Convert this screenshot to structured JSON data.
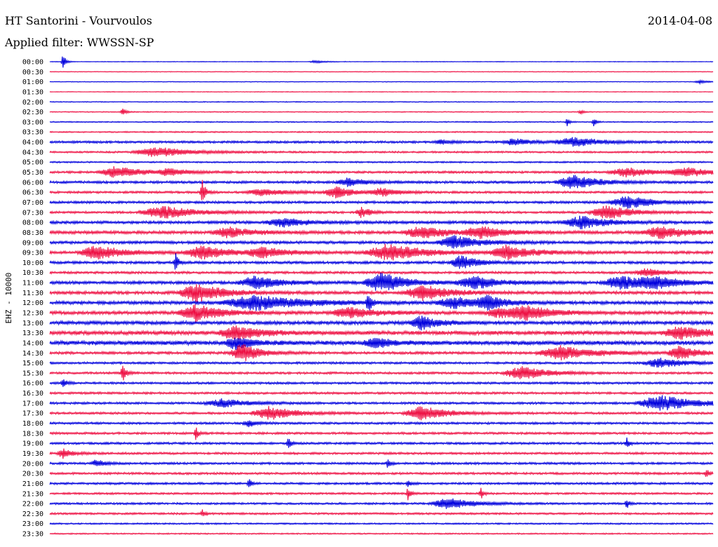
{
  "header": {
    "station": "HT Santorini - Vourvoulos",
    "date": "2014-04-08",
    "filter": "Applied filter: WWSSN-SP"
  },
  "colors": {
    "trace_even": "#0000dd",
    "trace_odd": "#ee1144",
    "background": "#ffffff",
    "text": "#000000"
  },
  "chart_data": {
    "type": "line",
    "title": "HT Santorini - Vourvoulos",
    "subtitle": "Applied filter: WWSSN-SP",
    "ylabel": "EHZ - 10000",
    "xlabel": "",
    "grid": false,
    "categories": [
      "00:00",
      "00:30",
      "01:00",
      "01:30",
      "02:00",
      "02:30",
      "03:00",
      "03:30",
      "04:00",
      "04:30",
      "05:00",
      "05:30",
      "06:00",
      "06:30",
      "07:00",
      "07:30",
      "08:00",
      "08:30",
      "09:00",
      "09:30",
      "10:00",
      "10:30",
      "11:00",
      "11:30",
      "12:00",
      "12:30",
      "13:00",
      "13:30",
      "14:00",
      "14:30",
      "15:00",
      "15:30",
      "16:00",
      "16:30",
      "17:00",
      "17:30",
      "18:00",
      "18:30",
      "19:00",
      "19:30",
      "20:00",
      "20:30",
      "21:00",
      "21:30",
      "22:00",
      "22:30",
      "23:00",
      "23:30"
    ],
    "trace_colors": [
      "#0000dd",
      "#ee1144"
    ],
    "noise_level": [
      0.3,
      0.3,
      0.3,
      0.3,
      0.4,
      0.4,
      0.5,
      0.6,
      1.0,
      0.8,
      0.7,
      1.0,
      1.1,
      1.0,
      1.1,
      1.0,
      1.3,
      1.4,
      1.3,
      1.3,
      1.2,
      1.1,
      1.4,
      1.4,
      1.5,
      1.5,
      1.6,
      1.8,
      1.9,
      1.2,
      1.0,
      1.0,
      1.0,
      1.0,
      1.0,
      1.0,
      1.0,
      1.0,
      1.0,
      1.0,
      1.0,
      1.0,
      1.0,
      0.9,
      0.9,
      0.9,
      0.7,
      0.6
    ],
    "events": [
      {
        "row": 0,
        "t": 0.02,
        "amp": 12,
        "dur": 0.003
      },
      {
        "row": 0,
        "t": 0.4,
        "amp": 2,
        "dur": 0.01
      },
      {
        "row": 2,
        "t": 0.98,
        "amp": 2,
        "dur": 0.01
      },
      {
        "row": 5,
        "t": 0.11,
        "amp": 6,
        "dur": 0.004
      },
      {
        "row": 5,
        "t": 0.8,
        "amp": 3,
        "dur": 0.004
      },
      {
        "row": 6,
        "t": 0.78,
        "amp": 6,
        "dur": 0.003
      },
      {
        "row": 6,
        "t": 0.82,
        "amp": 6,
        "dur": 0.003
      },
      {
        "row": 8,
        "t": 0.59,
        "amp": 4,
        "dur": 0.01
      },
      {
        "row": 8,
        "t": 0.7,
        "amp": 5,
        "dur": 0.02
      },
      {
        "row": 8,
        "t": 0.79,
        "amp": 7,
        "dur": 0.03
      },
      {
        "row": 9,
        "t": 0.16,
        "amp": 7,
        "dur": 0.04
      },
      {
        "row": 11,
        "t": 0.1,
        "amp": 8,
        "dur": 0.03
      },
      {
        "row": 11,
        "t": 0.18,
        "amp": 5,
        "dur": 0.02
      },
      {
        "row": 11,
        "t": 0.87,
        "amp": 7,
        "dur": 0.03
      },
      {
        "row": 11,
        "t": 0.96,
        "amp": 6,
        "dur": 0.03
      },
      {
        "row": 12,
        "t": 0.45,
        "amp": 6,
        "dur": 0.02
      },
      {
        "row": 12,
        "t": 0.79,
        "amp": 10,
        "dur": 0.03
      },
      {
        "row": 13,
        "t": 0.23,
        "amp": 18,
        "dur": 0.004
      },
      {
        "row": 13,
        "t": 0.32,
        "amp": 5,
        "dur": 0.03
      },
      {
        "row": 13,
        "t": 0.43,
        "amp": 8,
        "dur": 0.02
      },
      {
        "row": 13,
        "t": 0.5,
        "amp": 6,
        "dur": 0.02
      },
      {
        "row": 14,
        "t": 0.87,
        "amp": 9,
        "dur": 0.03
      },
      {
        "row": 15,
        "t": 0.17,
        "amp": 9,
        "dur": 0.04
      },
      {
        "row": 15,
        "t": 0.47,
        "amp": 8,
        "dur": 0.01
      },
      {
        "row": 15,
        "t": 0.84,
        "amp": 10,
        "dur": 0.03
      },
      {
        "row": 16,
        "t": 0.35,
        "amp": 6,
        "dur": 0.03
      },
      {
        "row": 16,
        "t": 0.8,
        "amp": 9,
        "dur": 0.03
      },
      {
        "row": 17,
        "t": 0.27,
        "amp": 7,
        "dur": 0.03
      },
      {
        "row": 17,
        "t": 0.56,
        "amp": 9,
        "dur": 0.03
      },
      {
        "row": 17,
        "t": 0.65,
        "amp": 8,
        "dur": 0.03
      },
      {
        "row": 17,
        "t": 0.92,
        "amp": 9,
        "dur": 0.03
      },
      {
        "row": 18,
        "t": 0.61,
        "amp": 10,
        "dur": 0.03
      },
      {
        "row": 19,
        "t": 0.07,
        "amp": 10,
        "dur": 0.03
      },
      {
        "row": 19,
        "t": 0.23,
        "amp": 10,
        "dur": 0.03
      },
      {
        "row": 19,
        "t": 0.32,
        "amp": 7,
        "dur": 0.03
      },
      {
        "row": 19,
        "t": 0.51,
        "amp": 12,
        "dur": 0.04
      },
      {
        "row": 19,
        "t": 0.69,
        "amp": 10,
        "dur": 0.03
      },
      {
        "row": 20,
        "t": 0.62,
        "amp": 10,
        "dur": 0.02
      },
      {
        "row": 20,
        "t": 0.19,
        "amp": 14,
        "dur": 0.003
      },
      {
        "row": 21,
        "t": 0.9,
        "amp": 6,
        "dur": 0.02
      },
      {
        "row": 22,
        "t": 0.31,
        "amp": 9,
        "dur": 0.03
      },
      {
        "row": 22,
        "t": 0.5,
        "amp": 14,
        "dur": 0.03
      },
      {
        "row": 22,
        "t": 0.64,
        "amp": 9,
        "dur": 0.03
      },
      {
        "row": 22,
        "t": 0.86,
        "amp": 10,
        "dur": 0.03
      },
      {
        "row": 22,
        "t": 0.91,
        "amp": 8,
        "dur": 0.03
      },
      {
        "row": 23,
        "t": 0.22,
        "amp": 14,
        "dur": 0.03
      },
      {
        "row": 23,
        "t": 0.56,
        "amp": 12,
        "dur": 0.03
      },
      {
        "row": 24,
        "t": 0.31,
        "amp": 10,
        "dur": 0.06
      },
      {
        "row": 24,
        "t": 0.61,
        "amp": 8,
        "dur": 0.03
      },
      {
        "row": 24,
        "t": 0.66,
        "amp": 9,
        "dur": 0.02
      },
      {
        "row": 24,
        "t": 0.48,
        "amp": 16,
        "dur": 0.004
      },
      {
        "row": 25,
        "t": 0.22,
        "amp": 12,
        "dur": 0.03
      },
      {
        "row": 25,
        "t": 0.45,
        "amp": 8,
        "dur": 0.03
      },
      {
        "row": 25,
        "t": 0.68,
        "amp": 7,
        "dur": 0.03
      },
      {
        "row": 25,
        "t": 0.72,
        "amp": 9,
        "dur": 0.03
      },
      {
        "row": 26,
        "t": 0.56,
        "amp": 10,
        "dur": 0.02
      },
      {
        "row": 27,
        "t": 0.28,
        "amp": 10,
        "dur": 0.03
      },
      {
        "row": 27,
        "t": 0.95,
        "amp": 9,
        "dur": 0.03
      },
      {
        "row": 28,
        "t": 0.28,
        "amp": 9,
        "dur": 0.02
      },
      {
        "row": 28,
        "t": 0.49,
        "amp": 8,
        "dur": 0.02
      },
      {
        "row": 29,
        "t": 0.29,
        "amp": 14,
        "dur": 0.02
      },
      {
        "row": 29,
        "t": 0.77,
        "amp": 10,
        "dur": 0.04
      },
      {
        "row": 29,
        "t": 0.95,
        "amp": 10,
        "dur": 0.02
      },
      {
        "row": 30,
        "t": 0.92,
        "amp": 7,
        "dur": 0.03
      },
      {
        "row": 31,
        "t": 0.11,
        "amp": 14,
        "dur": 0.004
      },
      {
        "row": 31,
        "t": 0.71,
        "amp": 10,
        "dur": 0.03
      },
      {
        "row": 32,
        "t": 0.02,
        "amp": 8,
        "dur": 0.004
      },
      {
        "row": 34,
        "t": 0.26,
        "amp": 6,
        "dur": 0.03
      },
      {
        "row": 34,
        "t": 0.92,
        "amp": 12,
        "dur": 0.04
      },
      {
        "row": 35,
        "t": 0.33,
        "amp": 10,
        "dur": 0.03
      },
      {
        "row": 35,
        "t": 0.56,
        "amp": 10,
        "dur": 0.03
      },
      {
        "row": 36,
        "t": 0.3,
        "amp": 5,
        "dur": 0.01
      },
      {
        "row": 37,
        "t": 0.22,
        "amp": 10,
        "dur": 0.003
      },
      {
        "row": 38,
        "t": 0.36,
        "amp": 12,
        "dur": 0.003
      },
      {
        "row": 38,
        "t": 0.87,
        "amp": 8,
        "dur": 0.003
      },
      {
        "row": 39,
        "t": 0.02,
        "amp": 7,
        "dur": 0.01
      },
      {
        "row": 40,
        "t": 0.07,
        "amp": 5,
        "dur": 0.01
      },
      {
        "row": 40,
        "t": 0.51,
        "amp": 8,
        "dur": 0.003
      },
      {
        "row": 41,
        "t": 0.99,
        "amp": 8,
        "dur": 0.003
      },
      {
        "row": 42,
        "t": 0.3,
        "amp": 8,
        "dur": 0.003
      },
      {
        "row": 42,
        "t": 0.54,
        "amp": 6,
        "dur": 0.003
      },
      {
        "row": 43,
        "t": 0.54,
        "amp": 10,
        "dur": 0.003
      },
      {
        "row": 43,
        "t": 0.65,
        "amp": 8,
        "dur": 0.003
      },
      {
        "row": 44,
        "t": 0.6,
        "amp": 8,
        "dur": 0.03
      },
      {
        "row": 44,
        "t": 0.87,
        "amp": 8,
        "dur": 0.003
      },
      {
        "row": 45,
        "t": 0.23,
        "amp": 6,
        "dur": 0.003
      }
    ]
  }
}
